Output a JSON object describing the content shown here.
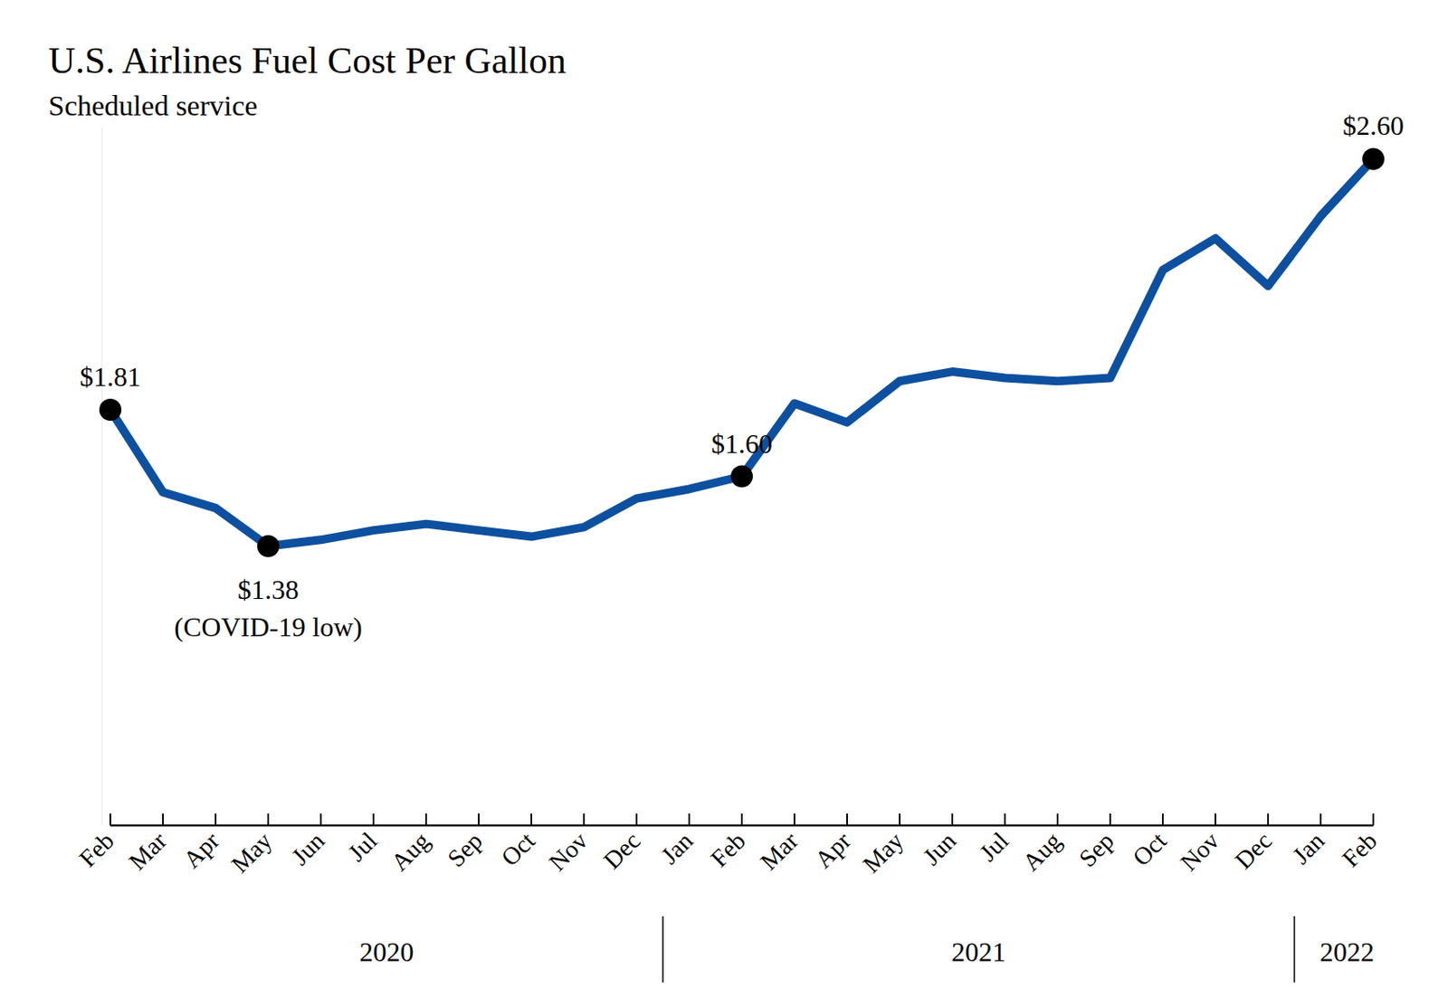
{
  "chart_data": {
    "type": "line",
    "title": "U.S. Airlines Fuel Cost Per Gallon",
    "subtitle": "Scheduled service",
    "categories": [
      "Feb",
      "Mar",
      "Apr",
      "May",
      "Jun",
      "Jul",
      "Aug",
      "Sep",
      "Oct",
      "Nov",
      "Dec",
      "Jan",
      "Feb",
      "Mar",
      "Apr",
      "May",
      "Jun",
      "Jul",
      "Aug",
      "Sep",
      "Oct",
      "Nov",
      "Dec",
      "Jan",
      "Feb"
    ],
    "year_groups": [
      {
        "label": "2020",
        "start": 0,
        "end": 10
      },
      {
        "label": "2021",
        "start": 11,
        "end": 22
      },
      {
        "label": "2022",
        "start": 23,
        "end": 24
      }
    ],
    "series": [
      {
        "name": "Fuel cost per gallon",
        "color": "#0d50a0",
        "marker": "circle",
        "line_style": "solid",
        "values": [
          1.81,
          1.55,
          1.5,
          1.38,
          1.4,
          1.43,
          1.45,
          1.43,
          1.41,
          1.44,
          1.53,
          1.56,
          1.6,
          1.83,
          1.77,
          1.9,
          1.93,
          1.91,
          1.9,
          1.91,
          2.25,
          2.35,
          2.2,
          2.42,
          2.6
        ],
        "value_labels": [
          "$1.81",
          null,
          null,
          "$1.38",
          null,
          null,
          null,
          null,
          null,
          null,
          null,
          null,
          "$1.60",
          null,
          null,
          null,
          null,
          null,
          null,
          null,
          null,
          null,
          null,
          null,
          "$2.60"
        ]
      }
    ],
    "annotations": [
      {
        "text": "(COVID-19 low)",
        "index": 3
      }
    ],
    "ylim": [
      0.5,
      2.7
    ],
    "data_labels": true,
    "tick_labels": "x",
    "grid": false
  }
}
